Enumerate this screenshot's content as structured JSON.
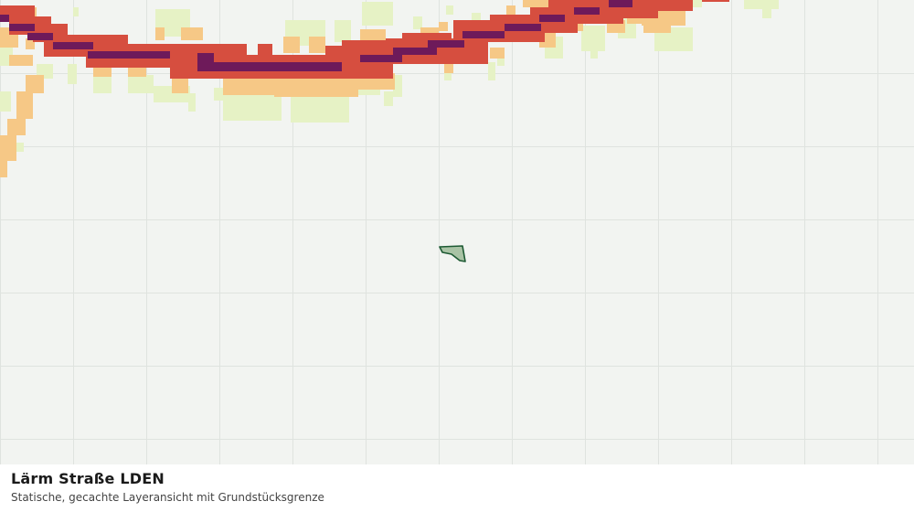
{
  "map": {
    "layer": "noise-road-lden",
    "gridlines": true,
    "colors": {
      "background": "#f2f4f1",
      "grid": "#dfe3df",
      "noise_low": "#e6f2c5",
      "noise_mid": "#f6c886",
      "noise_high": "#d64e3f",
      "noise_very_high": "#6e1a5a",
      "parcel_fill": "#a9c3a5",
      "parcel_stroke": "#1d5a33"
    }
  },
  "caption": {
    "title": "Lärm Straße LDEN",
    "subtitle": "Statische, gecachte Layeransicht mit Grundstücksgrenze"
  }
}
